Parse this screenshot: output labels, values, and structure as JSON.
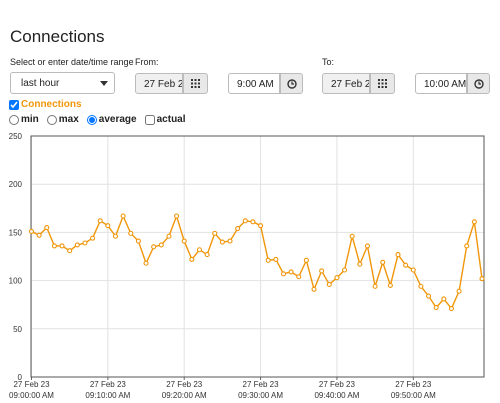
{
  "header": {
    "title": "Connections"
  },
  "form": {
    "range_label": "Select or enter date/time range",
    "range_value": "last hour",
    "from_label": "From:",
    "from_date": "27 Feb 2",
    "from_time": "9:00 AM",
    "to_label": "To:",
    "to_date": "27 Feb 2",
    "to_time": "10:00 AM",
    "aggregations": [
      "min",
      "max",
      "average"
    ],
    "selected": "average",
    "actual_label": "actual"
  },
  "chart_data": {
    "type": "line",
    "series": [
      {
        "name": "Connections",
        "color": "#f0960a",
        "values": [
          151,
          147,
          155,
          136,
          136,
          131,
          137,
          139,
          144,
          162,
          157,
          146,
          167,
          149,
          141,
          118,
          135,
          137,
          146,
          167,
          141,
          122,
          132,
          127,
          149,
          140,
          141,
          154,
          162,
          161,
          157,
          121,
          122,
          107,
          109,
          104,
          121,
          91,
          110,
          96,
          103,
          111,
          146,
          117,
          136,
          94,
          119,
          95,
          127,
          116,
          111,
          94,
          84,
          72,
          81,
          71,
          89,
          136,
          161,
          102
        ]
      }
    ],
    "x": [
      "09:00:00 AM",
      "09:01:00 AM",
      "09:02:00 AM",
      "09:03:00 AM",
      "09:04:00 AM",
      "09:05:00 AM",
      "09:06:00 AM",
      "09:07:00 AM",
      "09:08:00 AM",
      "09:09:00 AM",
      "09:10:00 AM",
      "09:11:00 AM",
      "09:12:00 AM",
      "09:13:00 AM",
      "09:14:00 AM",
      "09:15:00 AM",
      "09:16:00 AM",
      "09:17:00 AM",
      "09:18:00 AM",
      "09:19:00 AM",
      "09:20:00 AM",
      "09:21:00 AM",
      "09:22:00 AM",
      "09:23:00 AM",
      "09:24:00 AM",
      "09:25:00 AM",
      "09:26:00 AM",
      "09:27:00 AM",
      "09:28:00 AM",
      "09:29:00 AM",
      "09:30:00 AM",
      "09:31:00 AM",
      "09:32:00 AM",
      "09:33:00 AM",
      "09:34:00 AM",
      "09:35:00 AM",
      "09:36:00 AM",
      "09:37:00 AM",
      "09:38:00 AM",
      "09:39:00 AM",
      "09:40:00 AM",
      "09:41:00 AM",
      "09:42:00 AM",
      "09:43:00 AM",
      "09:44:00 AM",
      "09:45:00 AM",
      "09:46:00 AM",
      "09:47:00 AM",
      "09:48:00 AM",
      "09:49:00 AM",
      "09:50:00 AM",
      "09:51:00 AM",
      "09:52:00 AM",
      "09:53:00 AM",
      "09:54:00 AM",
      "09:55:00 AM",
      "09:56:00 AM",
      "09:57:00 AM",
      "09:58:00 AM",
      "09:59:00 AM"
    ],
    "xlim": [
      "09:00:00 AM",
      "09:59:00 AM"
    ],
    "xticks": [
      {
        "date": "27 Feb 23",
        "time": "09:00:00 AM"
      },
      {
        "date": "27 Feb 23",
        "time": "09:10:00 AM"
      },
      {
        "date": "27 Feb 23",
        "time": "09:20:00 AM"
      },
      {
        "date": "27 Feb 23",
        "time": "09:30:00 AM"
      },
      {
        "date": "27 Feb 23",
        "time": "09:40:00 AM"
      },
      {
        "date": "27 Feb 23",
        "time": "09:50:00 AM"
      }
    ],
    "ylim": [
      0,
      250
    ],
    "yticks": [
      0,
      50,
      100,
      150,
      200,
      250
    ],
    "grid": true
  }
}
